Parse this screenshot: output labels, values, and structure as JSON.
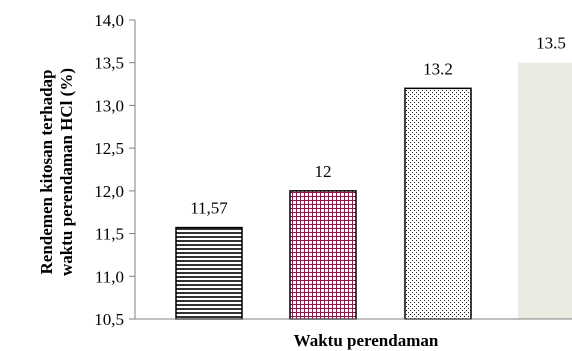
{
  "chart_data": {
    "type": "bar",
    "xlabel": "Waktu perendaman",
    "ylabel_lines": [
      "Rendemen kitosan terhadap",
      "waktu perendaman HCl (%)"
    ],
    "ylim": [
      10.5,
      14.0
    ],
    "yticks": [
      "10,5",
      "11,0",
      "11,5",
      "12,0",
      "12,5",
      "13,0",
      "13,5",
      "14,0"
    ],
    "ytick_values": [
      10.5,
      11.0,
      11.5,
      12.0,
      12.5,
      13.0,
      13.5,
      14.0
    ],
    "values": [
      11.57,
      12,
      13.2,
      13.5
    ],
    "data_labels": [
      "11,57",
      "12",
      "13.2",
      "13.5"
    ],
    "bar_styles": [
      "horizontal-lines",
      "magenta-grid",
      "dots",
      "solid-beige"
    ],
    "colors": {
      "magenta": "#8b1a4a",
      "beige": "#ecebe1",
      "axis": "#808080"
    },
    "grid": false,
    "legend": "none"
  }
}
